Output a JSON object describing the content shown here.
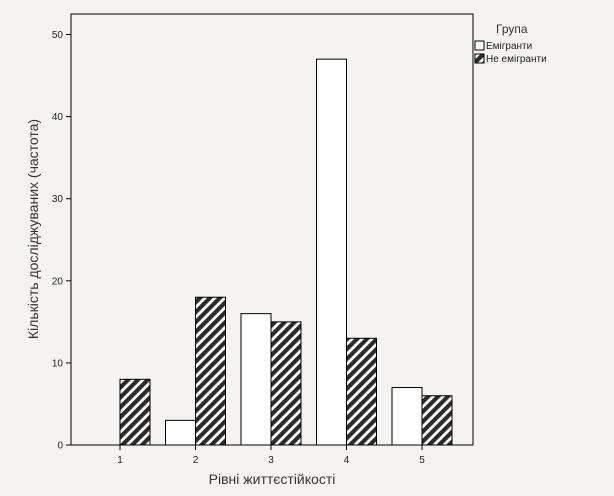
{
  "chart_data": {
    "type": "bar",
    "categories": [
      "1",
      "2",
      "3",
      "4",
      "5"
    ],
    "series": [
      {
        "name": "Емігранти",
        "values": [
          0,
          3,
          16,
          47,
          7
        ],
        "fill": "#ffffff",
        "pattern": "none"
      },
      {
        "name": "Не емігранти",
        "values": [
          8,
          18,
          15,
          13,
          6
        ],
        "fill": "#2b2b2b",
        "pattern": "diagonal-hatch"
      }
    ],
    "xlabel": "Рівні життєстійкості",
    "ylabel": "Кількість досліджуваних (частота)",
    "yticks": [
      0,
      10,
      20,
      30,
      40,
      50
    ],
    "ylim": [
      0,
      52.5
    ],
    "legend": {
      "title": "Група",
      "position": "right-top"
    },
    "grid": false
  },
  "colors": {
    "background": "#f4f3f1",
    "plot_background": "#f4f3f1",
    "stroke": "#000000"
  }
}
